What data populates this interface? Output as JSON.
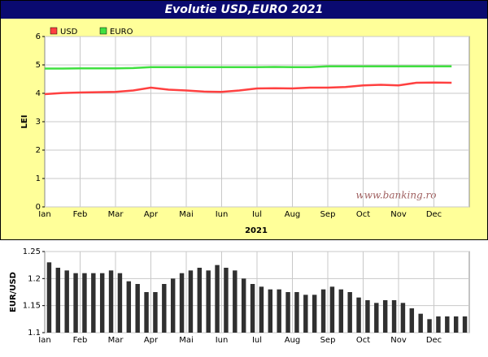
{
  "chart_data": [
    {
      "type": "line",
      "title": "Evolutie USD,EURO 2021",
      "xlabel": "2021",
      "ylabel": "LEI",
      "watermark": "www.banking.ro",
      "categories": [
        "Ian",
        null,
        "Feb",
        null,
        "Mar",
        null,
        "Apr",
        null,
        "Mai",
        null,
        "Iun",
        null,
        "Iul",
        null,
        "Aug",
        null,
        "Sep",
        null,
        "Oct",
        null,
        "Nov",
        null,
        "Dec",
        null
      ],
      "series": [
        {
          "name": "USD",
          "color": "#ff4040",
          "values": [
            3.97,
            4.01,
            4.03,
            4.04,
            4.05,
            4.1,
            4.2,
            4.13,
            4.1,
            4.06,
            4.05,
            4.1,
            4.17,
            4.18,
            4.17,
            4.2,
            4.2,
            4.22,
            4.28,
            4.3,
            4.28,
            4.37,
            4.38,
            4.37
          ]
        },
        {
          "name": "EURO",
          "color": "#40e040",
          "values": [
            4.87,
            4.87,
            4.88,
            4.88,
            4.88,
            4.89,
            4.92,
            4.92,
            4.92,
            4.92,
            4.92,
            4.92,
            4.92,
            4.93,
            4.92,
            4.92,
            4.95,
            4.95,
            4.95,
            4.95,
            4.95,
            4.95,
            4.95,
            4.95
          ]
        }
      ],
      "ylim": [
        0,
        6
      ],
      "yticks": [
        0,
        1,
        2,
        3,
        4,
        5,
        6
      ],
      "grid": true,
      "legend": "top-left"
    },
    {
      "type": "bar",
      "ylabel": "EUR/USD",
      "color": "#303030",
      "categories": [
        "Ian",
        null,
        null,
        null,
        "Feb",
        null,
        null,
        null,
        "Mar",
        null,
        null,
        null,
        "Apr",
        null,
        null,
        null,
        "Mai",
        null,
        null,
        null,
        "Iun",
        null,
        null,
        null,
        "Iul",
        null,
        null,
        null,
        "Aug",
        null,
        null,
        null,
        "Sep",
        null,
        null,
        null,
        "Oct",
        null,
        null,
        null,
        "Nov",
        null,
        null,
        null,
        "Dec",
        null,
        null,
        null
      ],
      "values": [
        1.23,
        1.22,
        1.215,
        1.21,
        1.21,
        1.21,
        1.21,
        1.215,
        1.21,
        1.195,
        1.19,
        1.175,
        1.175,
        1.19,
        1.2,
        1.21,
        1.215,
        1.22,
        1.215,
        1.225,
        1.22,
        1.215,
        1.2,
        1.19,
        1.185,
        1.18,
        1.18,
        1.175,
        1.175,
        1.17,
        1.17,
        1.18,
        1.185,
        1.18,
        1.175,
        1.165,
        1.16,
        1.155,
        1.16,
        1.16,
        1.155,
        1.145,
        1.135,
        1.125,
        1.13,
        1.13,
        1.13,
        1.13
      ],
      "ylim": [
        1.1,
        1.25
      ],
      "yticks": [
        1.1,
        1.15,
        1.2,
        1.25
      ],
      "grid": true
    }
  ]
}
